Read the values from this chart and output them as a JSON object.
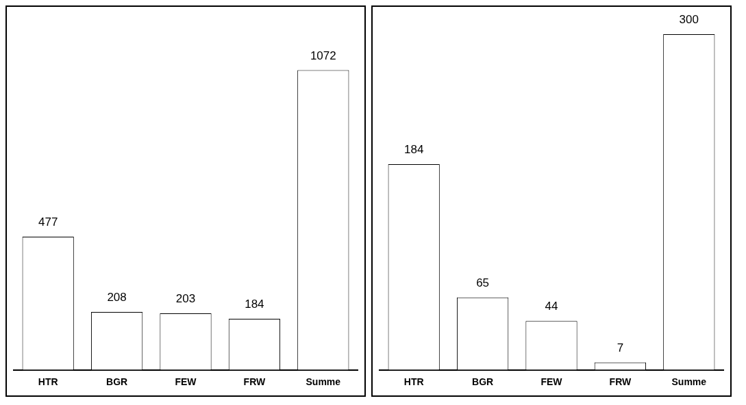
{
  "chart_data": [
    {
      "type": "bar",
      "categories": [
        "HTR",
        "BGR",
        "FEW",
        "FRW",
        "Summe"
      ],
      "values": [
        477,
        208,
        203,
        184,
        1072
      ],
      "color": "#ffffff",
      "data_labels": true,
      "grid": false,
      "legend": false,
      "tick_labels": "x"
    },
    {
      "type": "bar",
      "categories": [
        "HTR",
        "BGR",
        "FEW",
        "FRW",
        "Summe"
      ],
      "values": [
        184,
        65,
        44,
        7,
        300
      ],
      "color": "#ffffff",
      "data_labels": true,
      "grid": false,
      "legend": false,
      "tick_labels": "x"
    }
  ]
}
